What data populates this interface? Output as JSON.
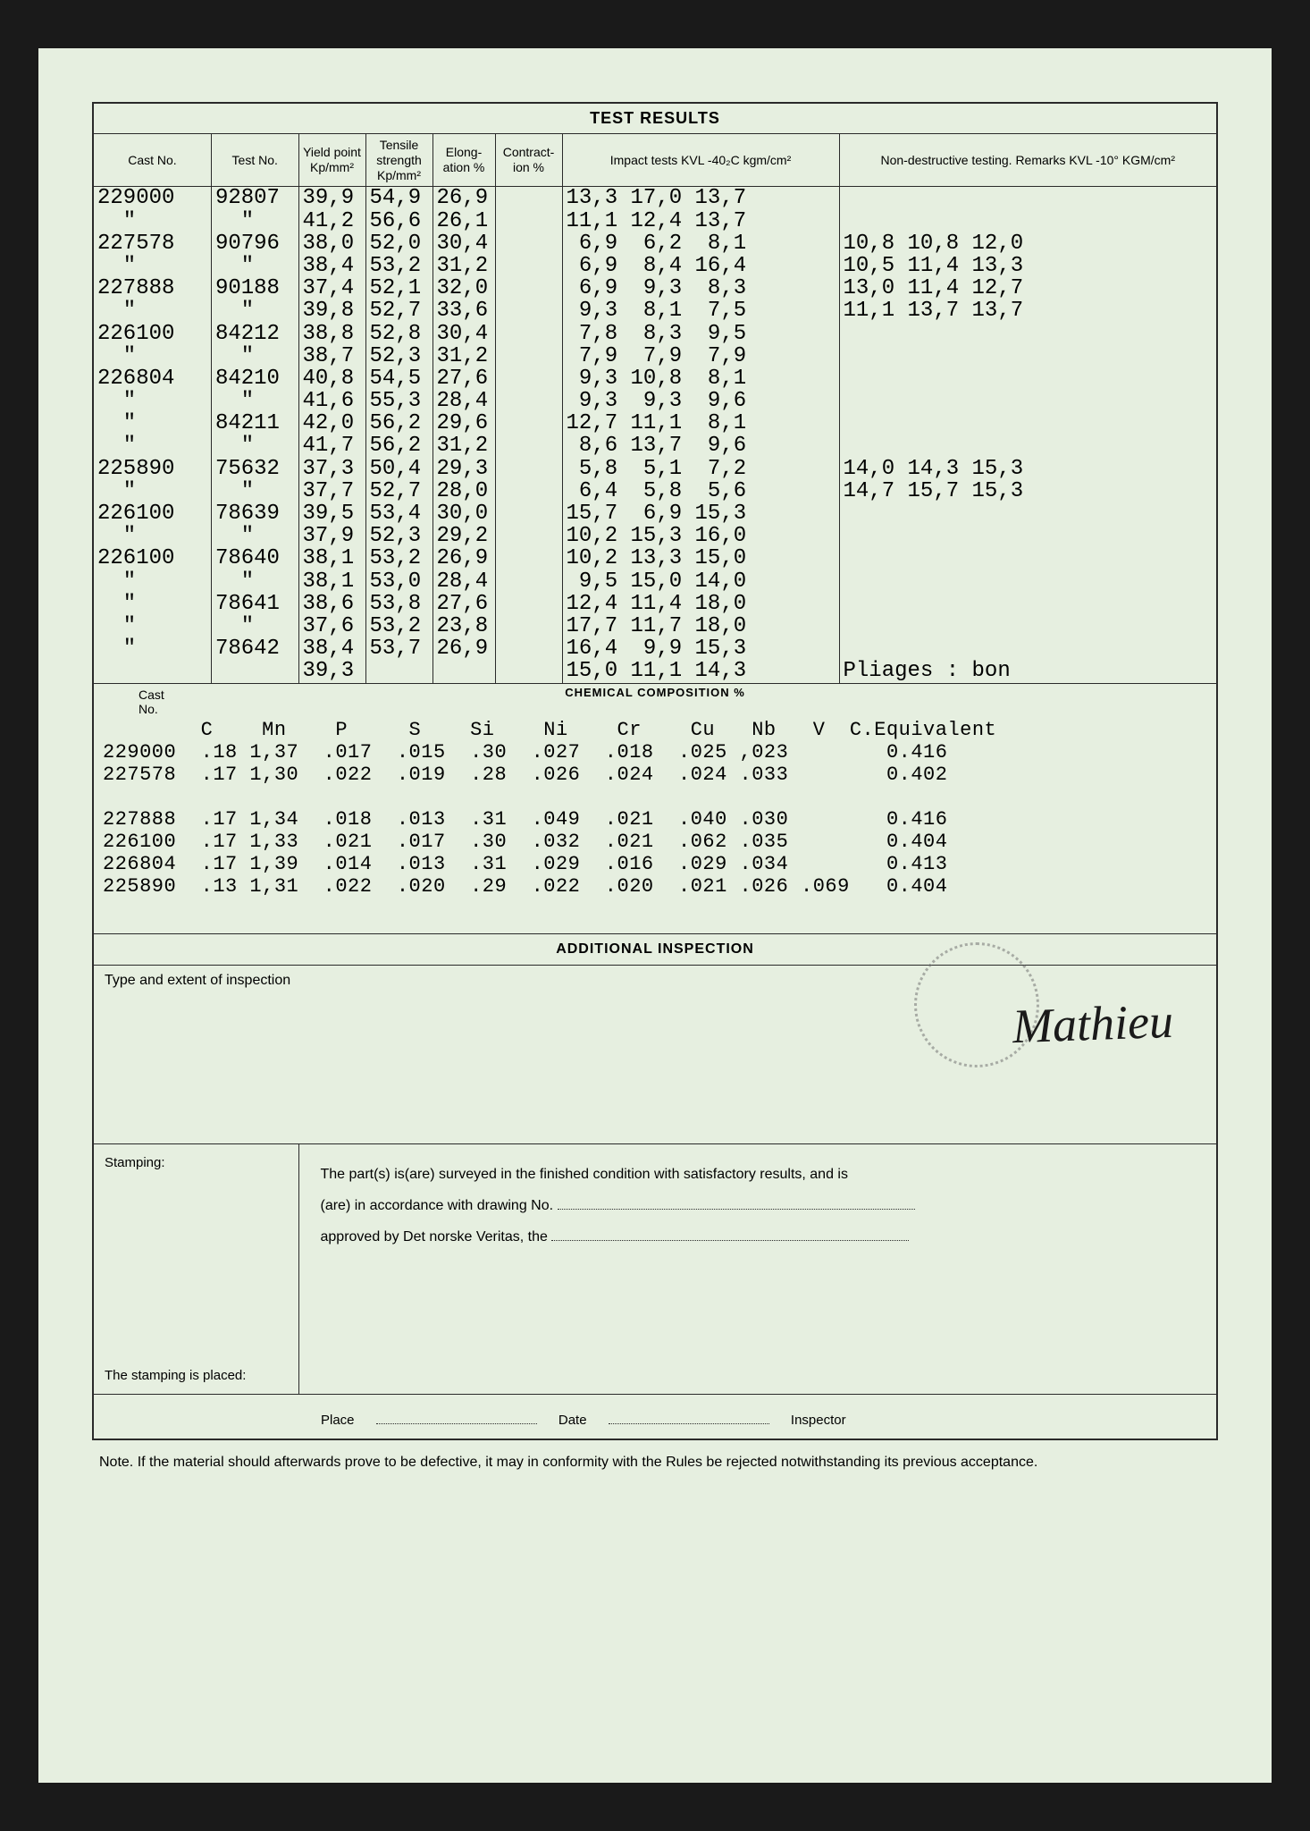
{
  "title": "TEST RESULTS",
  "headers": {
    "cast": "Cast\nNo.",
    "test": "Test\nNo.",
    "yield": "Yield\npoint\nKp/mm²",
    "tensile": "Tensile\nstrength\nKp/mm²",
    "elong": "Elong-\nation\n%",
    "contract": "Contract-\nion\n%",
    "impact1": "Impact tests\nKVL -40₂C\nkgm/cm²",
    "impact2": "Non-destructive testing.\nRemarks\nKVL -10°\nKGM/cm²"
  },
  "test_rows": [
    {
      "cast": "229000",
      "test": "92807",
      "y": "39,9",
      "t": "54,9",
      "e": "26,9",
      "c": "",
      "i1": "13,3 17,0 13,7",
      "i2": ""
    },
    {
      "cast": "  \"",
      "test": "  \"",
      "y": "41,2",
      "t": "56,6",
      "e": "26,1",
      "c": "",
      "i1": "11,1 12,4 13,7",
      "i2": ""
    },
    {
      "cast": "227578",
      "test": "90796",
      "y": "38,0",
      "t": "52,0",
      "e": "30,4",
      "c": "",
      "i1": " 6,9  6,2  8,1",
      "i2": "10,8 10,8 12,0"
    },
    {
      "cast": "  \"",
      "test": "  \"",
      "y": "38,4",
      "t": "53,2",
      "e": "31,2",
      "c": "",
      "i1": " 6,9  8,4 16,4",
      "i2": "10,5 11,4 13,3"
    },
    {
      "cast": "227888",
      "test": "90188",
      "y": "37,4",
      "t": "52,1",
      "e": "32,0",
      "c": "",
      "i1": " 6,9  9,3  8,3",
      "i2": "13,0 11,4 12,7"
    },
    {
      "cast": "  \"",
      "test": "  \"",
      "y": "39,8",
      "t": "52,7",
      "e": "33,6",
      "c": "",
      "i1": " 9,3  8,1  7,5",
      "i2": "11,1 13,7 13,7"
    },
    {
      "cast": "226100",
      "test": "84212",
      "y": "38,8",
      "t": "52,8",
      "e": "30,4",
      "c": "",
      "i1": " 7,8  8,3  9,5",
      "i2": ""
    },
    {
      "cast": "  \"",
      "test": "  \"",
      "y": "38,7",
      "t": "52,3",
      "e": "31,2",
      "c": "",
      "i1": " 7,9  7,9  7,9",
      "i2": ""
    },
    {
      "cast": "226804",
      "test": "84210",
      "y": "40,8",
      "t": "54,5",
      "e": "27,6",
      "c": "",
      "i1": " 9,3 10,8  8,1",
      "i2": ""
    },
    {
      "cast": "  \"",
      "test": "  \"",
      "y": "41,6",
      "t": "55,3",
      "e": "28,4",
      "c": "",
      "i1": " 9,3  9,3  9,6",
      "i2": ""
    },
    {
      "cast": "  \"",
      "test": "84211",
      "y": "42,0",
      "t": "56,2",
      "e": "29,6",
      "c": "",
      "i1": "12,7 11,1  8,1",
      "i2": ""
    },
    {
      "cast": "  \"",
      "test": "  \"",
      "y": "41,7",
      "t": "56,2",
      "e": "31,2",
      "c": "",
      "i1": " 8,6 13,7  9,6",
      "i2": ""
    },
    {
      "cast": "225890",
      "test": "75632",
      "y": "37,3",
      "t": "50,4",
      "e": "29,3",
      "c": "",
      "i1": " 5,8  5,1  7,2",
      "i2": "14,0 14,3 15,3"
    },
    {
      "cast": "  \"",
      "test": "  \"",
      "y": "37,7",
      "t": "52,7",
      "e": "28,0",
      "c": "",
      "i1": " 6,4  5,8  5,6",
      "i2": "14,7 15,7 15,3"
    },
    {
      "cast": "226100",
      "test": "78639",
      "y": "39,5",
      "t": "53,4",
      "e": "30,0",
      "c": "",
      "i1": "15,7  6,9 15,3",
      "i2": ""
    },
    {
      "cast": "  \"",
      "test": "  \"",
      "y": "37,9",
      "t": "52,3",
      "e": "29,2",
      "c": "",
      "i1": "10,2 15,3 16,0",
      "i2": ""
    },
    {
      "cast": "226100",
      "test": "78640",
      "y": "38,1",
      "t": "53,2",
      "e": "26,9",
      "c": "",
      "i1": "10,2 13,3 15,0",
      "i2": ""
    },
    {
      "cast": "  \"",
      "test": "  \"",
      "y": "38,1",
      "t": "53,0",
      "e": "28,4",
      "c": "",
      "i1": " 9,5 15,0 14,0",
      "i2": ""
    },
    {
      "cast": "  \"",
      "test": "78641",
      "y": "38,6",
      "t": "53,8",
      "e": "27,6",
      "c": "",
      "i1": "12,4 11,4 18,0",
      "i2": ""
    },
    {
      "cast": "  \"",
      "test": "  \"",
      "y": "37,6",
      "t": "53,2",
      "e": "23,8",
      "c": "",
      "i1": "17,7 11,7 18,0",
      "i2": ""
    },
    {
      "cast": "  \"",
      "test": "78642",
      "y": "38,4",
      "t": "53,7",
      "e": "26,9",
      "c": "",
      "i1": "16,4  9,9 15,3",
      "i2": ""
    },
    {
      "cast": "",
      "test": "",
      "y": "39,3",
      "t": "",
      "e": "",
      "c": "",
      "i1": "15,0 11,1 14,3",
      "i2": "Pliages : bon"
    }
  ],
  "chem_title": "CHEMICAL COMPOSITION %",
  "chem_cast_label": "Cast\nNo.",
  "chem_header": "        C    Mn    P     S    Si    Ni    Cr    Cu   Nb   V  C.Equivalent",
  "chem_rows": [
    "229000  .18 1,37  .017  .015  .30  .027  .018  .025 ,023        0.416",
    "227578  .17 1,30  .022  .019  .28  .026  .024  .024 .033        0.402",
    "",
    "227888  .17 1,34  .018  .013  .31  .049  .021  .040 .030        0.416",
    "226100  .17 1,33  .021  .017  .30  .032  .021  .062 .035        0.404",
    "226804  .17 1,39  .014  .013  .31  .029  .016  .029 .034        0.413",
    "225890  .13 1,31  .022  .020  .29  .022  .020  .021 .026 .069   0.404"
  ],
  "additional": "ADDITIONAL INSPECTION",
  "inspection_label": "Type and extent of inspection",
  "stamping_label": "Stamping:",
  "stamping_placed": "The stamping is placed:",
  "stamping_text1": "The part(s) is(are) surveyed in the finished condition with satisfactory results, and is",
  "stamping_text2": "(are) in accordance with drawing No.",
  "stamping_text3": "approved by Det norske Veritas, the",
  "footer_place": "Place",
  "footer_date": "Date",
  "footer_inspector": "Inspector",
  "note": "Note. If the material should afterwards prove to be defective, it may in conformity with the Rules be rejected notwithstanding its previous acceptance.",
  "colors": {
    "page_bg": "#e6efe0",
    "border": "#2a2a2a",
    "text": "#1a1a1a"
  },
  "signature": "Mathieu"
}
